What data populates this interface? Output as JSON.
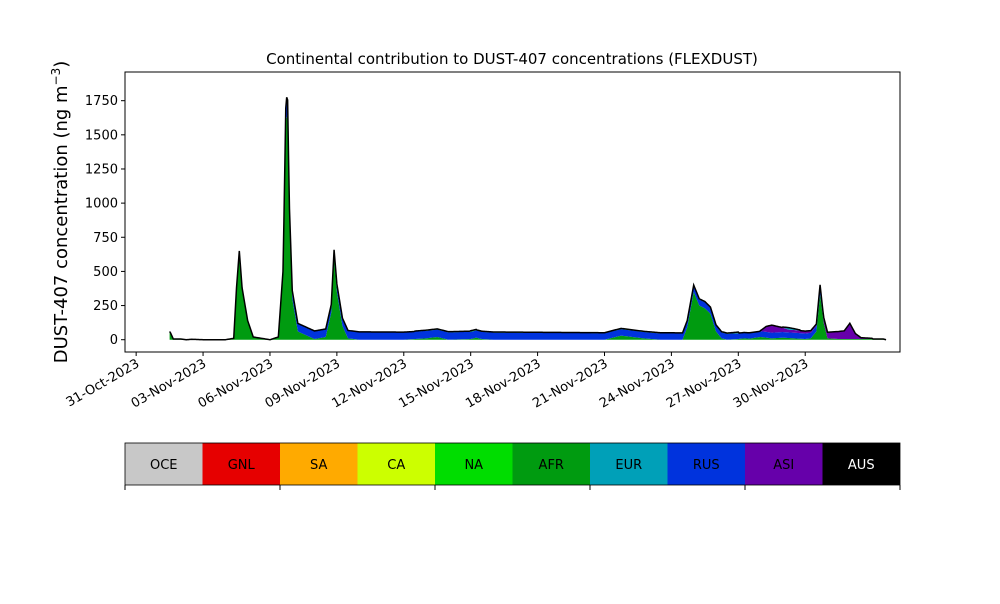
{
  "chart_data": {
    "type": "area",
    "stacked": true,
    "title": "Continental contribution to DUST-407 concentrations (FLEXDUST)",
    "ylabel": "DUST-407 concentration (ng m",
    "ylabel_sup": "−3",
    "ylabel_close": ")",
    "xlabel": "",
    "x_range": [
      "2023-10-30T12:00",
      "2023-12-04T06:00"
    ],
    "ylim": [
      -90,
      1960
    ],
    "yticks": [
      0,
      250,
      500,
      750,
      1000,
      1250,
      1500,
      1750
    ],
    "xticks": [
      {
        "date": "2023-10-31",
        "label": "31-Oct-2023"
      },
      {
        "date": "2023-11-03",
        "label": "03-Nov-2023"
      },
      {
        "date": "2023-11-06",
        "label": "06-Nov-2023"
      },
      {
        "date": "2023-11-09",
        "label": "09-Nov-2023"
      },
      {
        "date": "2023-11-12",
        "label": "12-Nov-2023"
      },
      {
        "date": "2023-11-15",
        "label": "15-Nov-2023"
      },
      {
        "date": "2023-11-18",
        "label": "18-Nov-2023"
      },
      {
        "date": "2023-11-21",
        "label": "21-Nov-2023"
      },
      {
        "date": "2023-11-24",
        "label": "24-Nov-2023"
      },
      {
        "date": "2023-11-27",
        "label": "27-Nov-2023"
      },
      {
        "date": "2023-11-30",
        "label": "30-Nov-2023"
      }
    ],
    "grid": false,
    "legend": "colorbar below plot",
    "series": [
      {
        "name": "AFR",
        "color": "#009b10",
        "x": [
          "2023-11-01T12:00",
          "2023-11-01T13:00",
          "2023-11-01T16:00",
          "2023-11-02T00:00",
          "2023-11-02T06:00",
          "2023-11-02T12:00",
          "2023-11-03T00:00",
          "2023-11-04T00:00",
          "2023-11-04T09:00",
          "2023-11-04T12:00",
          "2023-11-04T15:00",
          "2023-11-04T18:00",
          "2023-11-05T00:00",
          "2023-11-05T06:00",
          "2023-11-06T00:00",
          "2023-11-06T09:00",
          "2023-11-06T14:00",
          "2023-11-06T17:00",
          "2023-11-06T19:00",
          "2023-11-06T21:00",
          "2023-11-07T00:00",
          "2023-11-07T06:00",
          "2023-11-08T00:00",
          "2023-11-08T12:00",
          "2023-11-08T18:00",
          "2023-11-08T21:00",
          "2023-11-09T00:00",
          "2023-11-09T06:00",
          "2023-11-09T12:00",
          "2023-11-10T00:00",
          "2023-11-11T00:00",
          "2023-11-11T12:00",
          "2023-11-12T00:00",
          "2023-11-12T12:00",
          "2023-11-13T00:00",
          "2023-11-13T06:00",
          "2023-11-13T12:00",
          "2023-11-13T18:00",
          "2023-11-14T00:00",
          "2023-11-15T00:00",
          "2023-11-15T06:00",
          "2023-11-15T12:00",
          "2023-11-16T00:00",
          "2023-11-17T00:00",
          "2023-11-18T00:00",
          "2023-11-19T00:00",
          "2023-11-20T00:00",
          "2023-11-21T00:00",
          "2023-11-21T06:00",
          "2023-11-21T18:00",
          "2023-11-22T06:00",
          "2023-11-22T18:00",
          "2023-11-23T12:00",
          "2023-11-24T00:00",
          "2023-11-24T12:00",
          "2023-11-24T17:00",
          "2023-11-25T00:00",
          "2023-11-25T06:00",
          "2023-11-25T12:00",
          "2023-11-25T18:00",
          "2023-11-26T00:00",
          "2023-11-26T06:00",
          "2023-11-26T12:00",
          "2023-11-27T00:00",
          "2023-11-27T06:00",
          "2023-11-27T12:00",
          "2023-11-28T00:00",
          "2023-11-28T12:00",
          "2023-11-29T00:00",
          "2023-11-29T12:00",
          "2023-11-30T00:00",
          "2023-11-30T06:00",
          "2023-11-30T12:00",
          "2023-11-30T16:00",
          "2023-11-30T20:00",
          "2023-12-01T00:00",
          "2023-12-01T12:00",
          "2023-12-02T00:00",
          "2023-12-02T12:00",
          "2023-12-03T00:00",
          "2023-12-03T12:00",
          "2023-12-03T15:00"
        ],
        "values": [
          60,
          50,
          5,
          5,
          0,
          3,
          0,
          0,
          10,
          380,
          650,
          380,
          140,
          20,
          0,
          20,
          500,
          1600,
          1650,
          900,
          300,
          60,
          5,
          20,
          200,
          600,
          350,
          100,
          10,
          0,
          0,
          0,
          0,
          5,
          10,
          15,
          20,
          10,
          0,
          5,
          15,
          5,
          0,
          0,
          0,
          0,
          0,
          0,
          10,
          30,
          20,
          10,
          0,
          0,
          0,
          90,
          350,
          250,
          230,
          190,
          60,
          10,
          0,
          5,
          10,
          8,
          20,
          10,
          15,
          10,
          5,
          10,
          60,
          330,
          120,
          10,
          5,
          5,
          5,
          5,
          5,
          0
        ]
      },
      {
        "name": "RUS",
        "color": "#0033dd",
        "x": [
          "2023-11-06T16:00",
          "2023-11-06T18:00",
          "2023-11-06T20:00",
          "2023-11-30T16:00",
          "2023-11-30T18:00"
        ],
        "values": [
          40,
          150,
          60,
          40,
          10
        ]
      },
      {
        "name": "ASI",
        "color": "#6600aa",
        "x": [
          "2023-11-28T00:00",
          "2023-11-28T06:00",
          "2023-11-28T12:00",
          "2023-11-29T06:00",
          "2023-11-29T12:00",
          "2023-11-30T12:00",
          "2023-11-30T18:00",
          "2023-12-01T18:00",
          "2023-12-02T00:00",
          "2023-12-02T06:00",
          "2023-12-02T12:00",
          "2023-12-03T00:00"
        ],
        "values": [
          5,
          40,
          55,
          20,
          20,
          15,
          40,
          60,
          115,
          40,
          10,
          5
        ]
      },
      {
        "name": "EUR",
        "color": "#00a0b8",
        "x": [
          "2023-11-29T00:00",
          "2023-11-29T06:00",
          "2023-11-29T12:00",
          "2023-11-29T18:00"
        ],
        "values": [
          5,
          15,
          10,
          5
        ]
      },
      {
        "name": "NA",
        "color": "#00dd00",
        "x": [
          "2023-11-12T12:00",
          "2023-11-13T00:00",
          "2023-11-21T00:00",
          "2023-11-21T12:00",
          "2023-11-26T12:00",
          "2023-11-27T00:00"
        ],
        "values": [
          3,
          5,
          3,
          5,
          5,
          8
        ]
      },
      {
        "name": "CA",
        "color": "#ccff00",
        "x": [
          "2023-11-15T00:00",
          "2023-11-15T06:00"
        ],
        "values": [
          3,
          3
        ]
      }
    ],
    "colorbar": [
      {
        "label": "OCE",
        "color": "#c8c8c8",
        "text_color": "#000000"
      },
      {
        "label": "GNL",
        "color": "#e60000",
        "text_color": "#000000"
      },
      {
        "label": "SA",
        "color": "#ffaa00",
        "text_color": "#000000"
      },
      {
        "label": "CA",
        "color": "#ccff00",
        "text_color": "#000000"
      },
      {
        "label": "NA",
        "color": "#00dd00",
        "text_color": "#000000"
      },
      {
        "label": "AFR",
        "color": "#009b10",
        "text_color": "#000000"
      },
      {
        "label": "EUR",
        "color": "#00a0b8",
        "text_color": "#000000"
      },
      {
        "label": "RUS",
        "color": "#0033dd",
        "text_color": "#000000"
      },
      {
        "label": "ASI",
        "color": "#6600aa",
        "text_color": "#000000"
      },
      {
        "label": "AUS",
        "color": "#000000",
        "text_color": "#ffffff"
      }
    ]
  }
}
